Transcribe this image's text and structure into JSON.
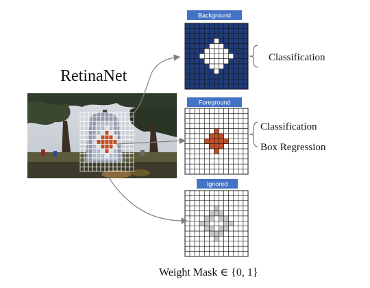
{
  "title": "RetinaNet",
  "caption": "Weight Mask ∈ {0, 1}",
  "colors": {
    "background_blue": "#1f3b7a",
    "foreground_orange": "#c0502a",
    "badge_blue": "#4472c4",
    "ignored_gray": "#c8c8c8",
    "arrow_gray": "#808080"
  },
  "panels": [
    {
      "label": "Background",
      "kind": "background",
      "outputs": [
        "Classification"
      ]
    },
    {
      "label": "Foreground",
      "kind": "foreground",
      "outputs": [
        "Classification",
        "Box Regression"
      ]
    },
    {
      "label": "Ignored",
      "kind": "ignored",
      "outputs": []
    }
  ],
  "photo": {
    "description_icon": "tree-scene-photo"
  }
}
